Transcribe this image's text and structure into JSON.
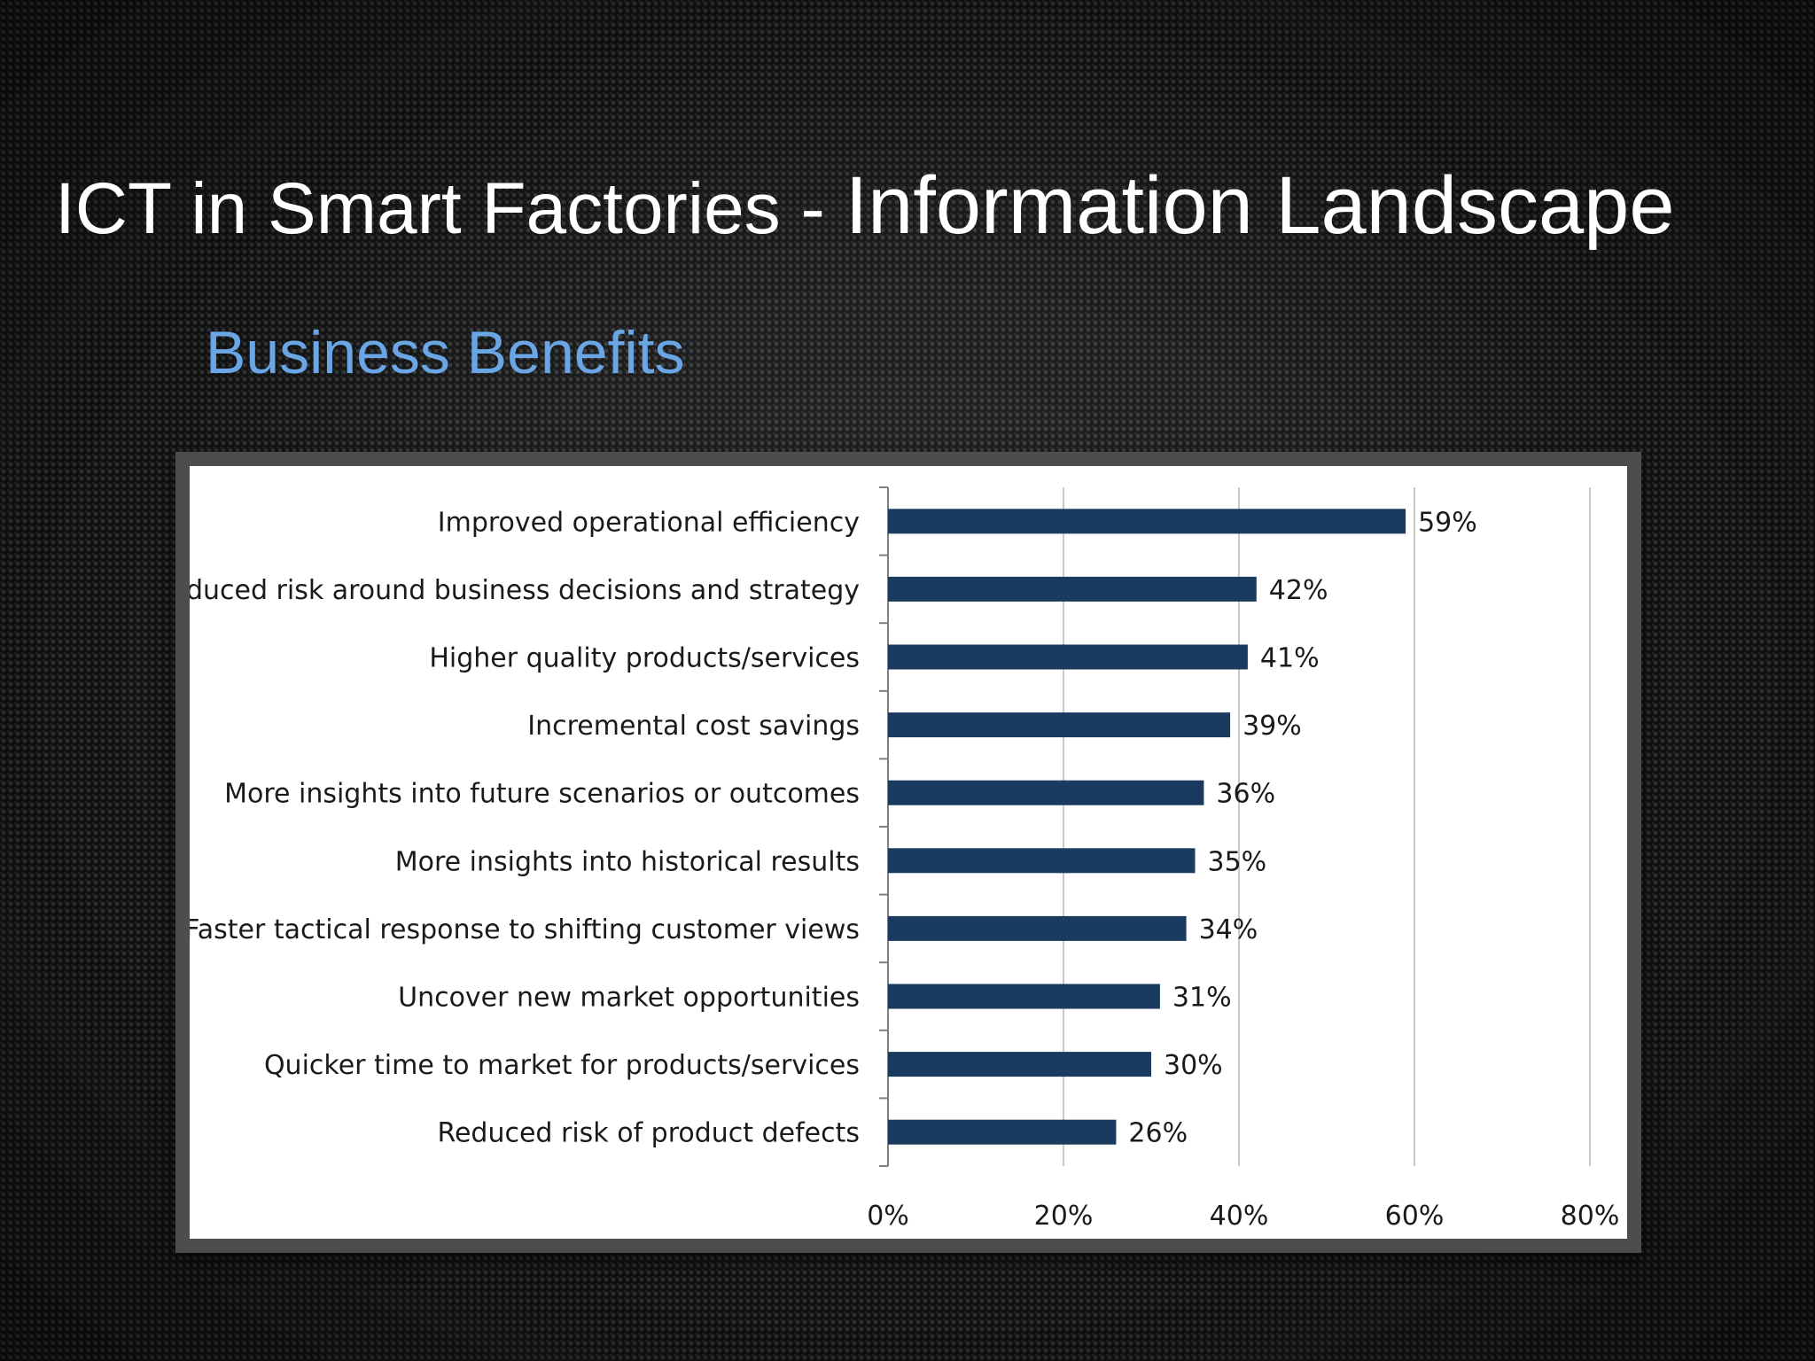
{
  "slide": {
    "title_part1": "ICT in Smart Factories",
    "title_separator": " - ",
    "title_part2": "Information Landscape",
    "subtitle": "Business Benefits"
  },
  "colors": {
    "bar": "#1a3a60",
    "grid": "#c8c8c8",
    "subtitle": "#6aa6e6"
  },
  "chart_data": {
    "type": "bar",
    "orientation": "horizontal",
    "categories": [
      "Improved operational efficiency",
      "Reduced risk around business decisions and strategy",
      "Higher quality products/services",
      "Incremental cost savings",
      "More insights into future scenarios or outcomes",
      "More insights into historical results",
      "Faster tactical response to shifting customer views",
      "Uncover new market opportunities",
      "Quicker time to market for products/services",
      "Reduced risk of product defects"
    ],
    "values": [
      59,
      42,
      41,
      39,
      36,
      35,
      34,
      31,
      30,
      26
    ],
    "value_labels": [
      "59%",
      "42%",
      "41%",
      "39%",
      "36%",
      "35%",
      "34%",
      "31%",
      "30%",
      "26%"
    ],
    "xlim": [
      0,
      80
    ],
    "x_ticks": [
      0,
      20,
      40,
      60,
      80
    ],
    "x_tick_labels": [
      "0%",
      "20%",
      "40%",
      "60%",
      "80%"
    ],
    "grid": "vertical",
    "title": "",
    "xlabel": "",
    "ylabel": ""
  }
}
